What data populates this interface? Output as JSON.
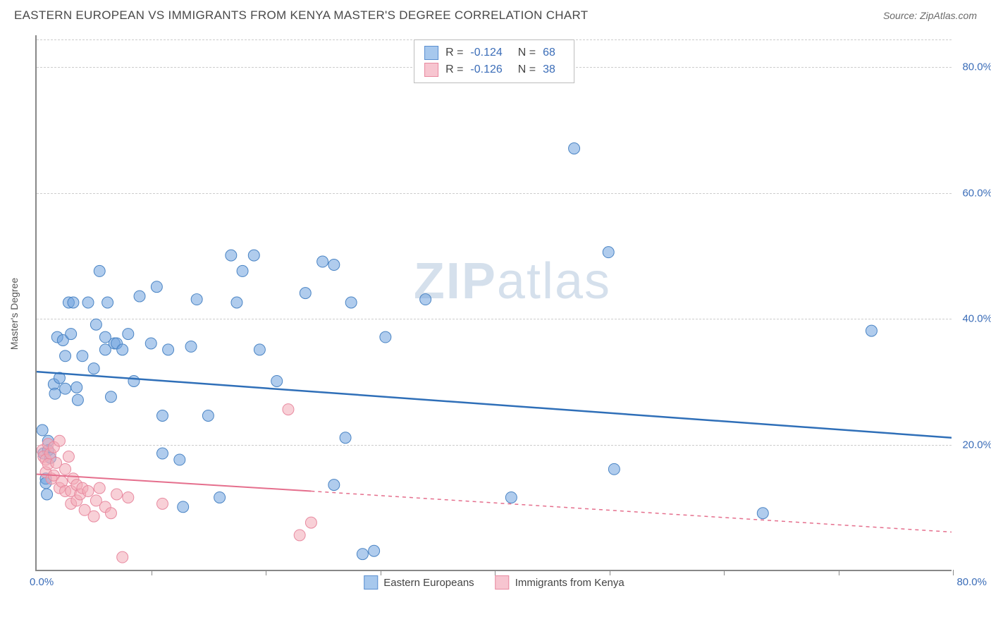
{
  "title": "EASTERN EUROPEAN VS IMMIGRANTS FROM KENYA MASTER'S DEGREE CORRELATION CHART",
  "source": "Source: ZipAtlas.com",
  "watermark": "ZIPatlas",
  "chart": {
    "type": "scatter",
    "xlim": [
      0,
      80
    ],
    "ylim": [
      0,
      85
    ],
    "y_axis_title": "Master's Degree",
    "y_ticks": [
      20,
      40,
      60,
      80
    ],
    "y_tick_labels": [
      "20.0%",
      "40.0%",
      "60.0%",
      "80.0%"
    ],
    "x_ticks": [
      0,
      10,
      20,
      30,
      40,
      50,
      60,
      70,
      80
    ],
    "x_origin_label": "0.0%",
    "x_max_label": "80.0%",
    "grid_color": "#cccccc",
    "axis_color": "#888888",
    "tick_label_color": "#3b6db8",
    "background_color": "#ffffff",
    "marker_radius": 8,
    "marker_opacity": 0.55,
    "series": [
      {
        "name": "Eastern Europeans",
        "color": "#6fa3de",
        "stroke": "#4a84c4",
        "line_color": "#2f6fb8",
        "line_width": 2.5,
        "r_value": "-0.124",
        "n_value": "68",
        "trend": {
          "x1": 0,
          "y1": 31.5,
          "x2": 80,
          "y2": 21,
          "dash_after": 80
        },
        "points": [
          [
            0.5,
            22.2
          ],
          [
            0.6,
            18.5
          ],
          [
            0.8,
            14.5
          ],
          [
            0.8,
            13.8
          ],
          [
            0.9,
            12.0
          ],
          [
            1.0,
            20.5
          ],
          [
            1.0,
            19.0
          ],
          [
            1.2,
            17.8
          ],
          [
            1.5,
            29.5
          ],
          [
            1.6,
            28.0
          ],
          [
            1.8,
            37.0
          ],
          [
            2.0,
            30.5
          ],
          [
            2.3,
            36.5
          ],
          [
            2.5,
            34.0
          ],
          [
            2.5,
            28.8
          ],
          [
            2.8,
            42.5
          ],
          [
            3.0,
            37.5
          ],
          [
            3.2,
            42.5
          ],
          [
            3.5,
            29.0
          ],
          [
            3.6,
            27.0
          ],
          [
            4.0,
            34.0
          ],
          [
            4.5,
            42.5
          ],
          [
            5.0,
            32.0
          ],
          [
            5.2,
            39.0
          ],
          [
            5.5,
            47.5
          ],
          [
            6.0,
            37.0
          ],
          [
            6.0,
            35.0
          ],
          [
            6.2,
            42.5
          ],
          [
            6.5,
            27.5
          ],
          [
            6.8,
            36.0
          ],
          [
            7.0,
            36.0
          ],
          [
            7.5,
            35.0
          ],
          [
            8.0,
            37.5
          ],
          [
            8.5,
            30.0
          ],
          [
            9.0,
            43.5
          ],
          [
            10.0,
            36.0
          ],
          [
            10.5,
            45.0
          ],
          [
            11.0,
            18.5
          ],
          [
            11.0,
            24.5
          ],
          [
            11.5,
            35.0
          ],
          [
            12.5,
            17.5
          ],
          [
            12.8,
            10.0
          ],
          [
            13.5,
            35.5
          ],
          [
            14.0,
            43.0
          ],
          [
            15.0,
            24.5
          ],
          [
            16.0,
            11.5
          ],
          [
            17.0,
            50.0
          ],
          [
            17.5,
            42.5
          ],
          [
            18.0,
            47.5
          ],
          [
            19.0,
            50.0
          ],
          [
            19.5,
            35.0
          ],
          [
            21.0,
            30.0
          ],
          [
            23.5,
            44.0
          ],
          [
            25.0,
            49.0
          ],
          [
            26.0,
            48.5
          ],
          [
            26.0,
            13.5
          ],
          [
            27.0,
            21.0
          ],
          [
            27.5,
            42.5
          ],
          [
            28.5,
            2.5
          ],
          [
            29.5,
            3.0
          ],
          [
            30.5,
            37.0
          ],
          [
            34.0,
            43.0
          ],
          [
            41.5,
            11.5
          ],
          [
            47.0,
            67.0
          ],
          [
            50.0,
            50.5
          ],
          [
            50.5,
            16.0
          ],
          [
            63.5,
            9.0
          ],
          [
            73.0,
            38.0
          ]
        ]
      },
      {
        "name": "Immigrants from Kenya",
        "color": "#f2a9b6",
        "stroke": "#e88aa0",
        "line_color": "#e56f8d",
        "line_width": 2,
        "r_value": "-0.126",
        "n_value": "38",
        "trend": {
          "x1": 0,
          "y1": 15.2,
          "x2": 24,
          "y2": 12.5,
          "dash_after": 24,
          "x3": 80,
          "y3": 6.0
        },
        "points": [
          [
            0.5,
            19.0
          ],
          [
            0.6,
            18.0
          ],
          [
            0.8,
            17.5
          ],
          [
            0.8,
            15.5
          ],
          [
            1.0,
            20.0
          ],
          [
            1.0,
            16.8
          ],
          [
            1.2,
            18.5
          ],
          [
            1.3,
            14.5
          ],
          [
            1.5,
            19.5
          ],
          [
            1.5,
            15.0
          ],
          [
            1.7,
            17.0
          ],
          [
            2.0,
            20.5
          ],
          [
            2.0,
            13.0
          ],
          [
            2.2,
            14.0
          ],
          [
            2.5,
            12.5
          ],
          [
            2.5,
            16.0
          ],
          [
            2.8,
            18.0
          ],
          [
            3.0,
            12.5
          ],
          [
            3.0,
            10.5
          ],
          [
            3.2,
            14.5
          ],
          [
            3.5,
            13.5
          ],
          [
            3.5,
            11.0
          ],
          [
            3.8,
            12.0
          ],
          [
            4.0,
            13.0
          ],
          [
            4.2,
            9.5
          ],
          [
            4.5,
            12.5
          ],
          [
            5.0,
            8.5
          ],
          [
            5.2,
            11.0
          ],
          [
            5.5,
            13.0
          ],
          [
            6.0,
            10.0
          ],
          [
            6.5,
            9.0
          ],
          [
            7.0,
            12.0
          ],
          [
            7.5,
            2.0
          ],
          [
            8.0,
            11.5
          ],
          [
            11.0,
            10.5
          ],
          [
            22.0,
            25.5
          ],
          [
            23.0,
            5.5
          ],
          [
            24.0,
            7.5
          ]
        ]
      }
    ],
    "legend_swatch_blue": {
      "fill": "#a7c8ed",
      "border": "#5a8fd0"
    },
    "legend_swatch_pink": {
      "fill": "#f7c5d0",
      "border": "#e88aa0"
    }
  }
}
